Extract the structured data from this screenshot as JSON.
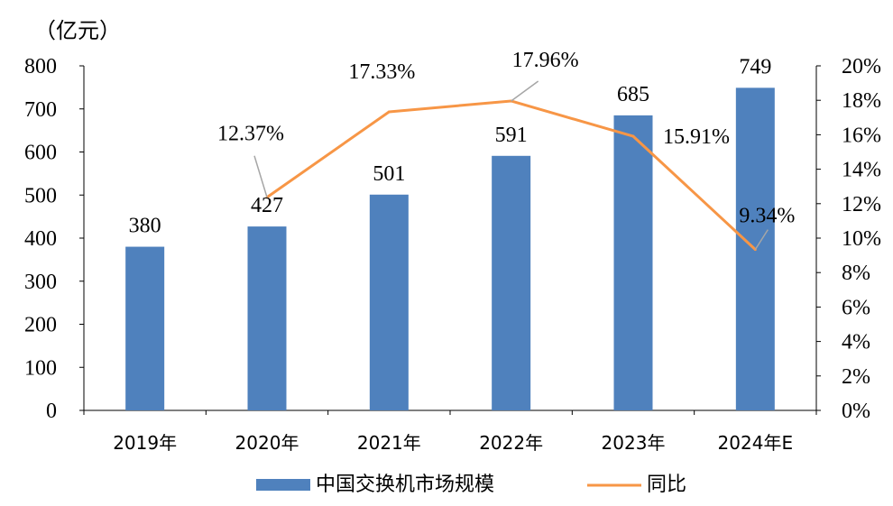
{
  "chart_data": {
    "type": "bar+line",
    "unit_label": "（亿元）",
    "categories": [
      "2019年",
      "2020年",
      "2021年",
      "2022年",
      "2023年",
      "2024年E"
    ],
    "series": [
      {
        "name": "中国交换机市场规模",
        "type": "bar",
        "axis": "left",
        "values": [
          380,
          427,
          501,
          591,
          685,
          749
        ],
        "labels": [
          "380",
          "427",
          "501",
          "591",
          "685",
          "749"
        ]
      },
      {
        "name": "同比",
        "type": "line",
        "axis": "right",
        "values": [
          null,
          12.37,
          17.33,
          17.96,
          15.91,
          9.34
        ],
        "labels": [
          "",
          "12.37%",
          "17.33%",
          "17.96%",
          "15.91%",
          "9.34%"
        ]
      }
    ],
    "y_left": {
      "range": [
        0,
        800
      ],
      "ticks": [
        "0",
        "100",
        "200",
        "300",
        "400",
        "500",
        "600",
        "700",
        "800"
      ]
    },
    "y_right": {
      "range": [
        0,
        20
      ],
      "ticks": [
        "0%",
        "2%",
        "4%",
        "6%",
        "8%",
        "10%",
        "12%",
        "14%",
        "16%",
        "18%",
        "20%"
      ]
    },
    "legend_position": "bottom",
    "grid": false,
    "colors": {
      "bar": "#4f81bd",
      "line": "#f79646",
      "axis": "#000000",
      "leader": "#a6a6a6"
    }
  }
}
